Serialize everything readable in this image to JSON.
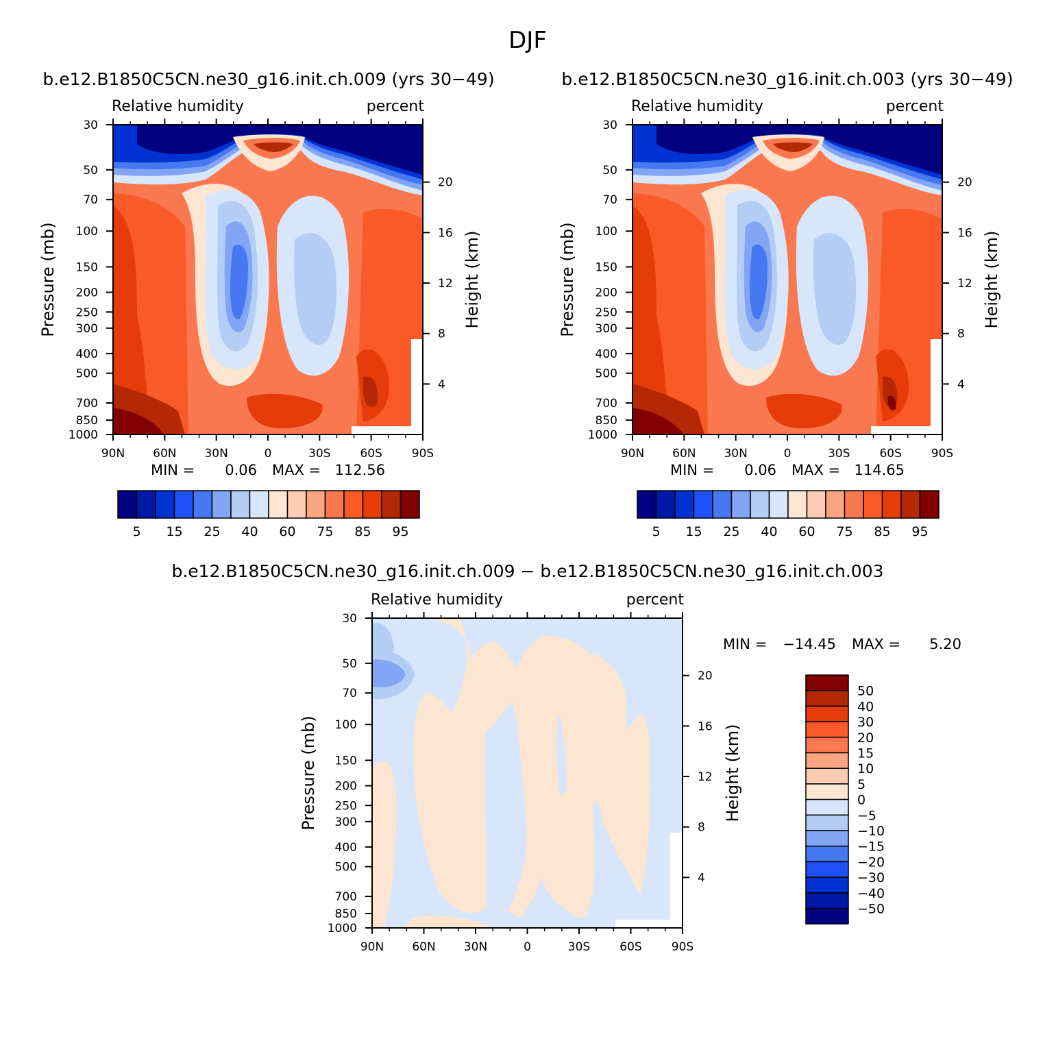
{
  "figure": {
    "title": "DJF",
    "diff_title": "b.e12.B1850C5CN.ne30_g16.init.ch.009 − b.e12.B1850C5CN.ne30_g16.init.ch.003"
  },
  "colors": {
    "rh_levels": [
      "#000080",
      "#0018a8",
      "#0032d2",
      "#1e50f5",
      "#4678f2",
      "#82a5f5",
      "#b4cdf5",
      "#d7e6fa",
      "#fce6d2",
      "#fccdb4",
      "#fca582",
      "#fa7850",
      "#fa5a28",
      "#e63c0a",
      "#b42805",
      "#820000"
    ],
    "diff_levels_top_down": [
      "#820000",
      "#b42805",
      "#e63c0a",
      "#fa5a28",
      "#fa7850",
      "#fca582",
      "#fccdb4",
      "#fce6d2",
      "#d7e6fa",
      "#b4cdf5",
      "#82a5f5",
      "#4678f2",
      "#1e50f5",
      "#0032d2",
      "#0018a8",
      "#000080"
    ]
  },
  "chart_data": [
    {
      "type": "heatmap",
      "title": "b.e12.B1850C5CN.ne30_g16.init.ch.009 (yrs 30−49)",
      "left_string": "Relative humidity",
      "right_string": "percent",
      "ylabel": "Pressure (mb)",
      "ylabel_right": "Height (km)",
      "x_ticks": [
        "90N",
        "60N",
        "30N",
        "0",
        "30S",
        "60S",
        "90S"
      ],
      "y_ticks": [
        "30",
        "50",
        "70",
        "100",
        "150",
        "200",
        "250",
        "300",
        "400",
        "500",
        "700",
        "850",
        "1000"
      ],
      "height_ticks": [
        "20",
        "16",
        "12",
        "8",
        "4"
      ],
      "stats": {
        "min_label": "MIN =",
        "min": "0.06",
        "max_label": "MAX =",
        "max": "112.56"
      },
      "colorbar_labels": [
        "5",
        "15",
        "25",
        "40",
        "60",
        "75",
        "85",
        "95"
      ]
    },
    {
      "type": "heatmap",
      "title": "b.e12.B1850C5CN.ne30_g16.init.ch.003 (yrs 30−49)",
      "left_string": "Relative humidity",
      "right_string": "percent",
      "ylabel": "Pressure (mb)",
      "ylabel_right": "Height (km)",
      "x_ticks": [
        "90N",
        "60N",
        "30N",
        "0",
        "30S",
        "60S",
        "90S"
      ],
      "y_ticks": [
        "30",
        "50",
        "70",
        "100",
        "150",
        "200",
        "250",
        "300",
        "400",
        "500",
        "700",
        "850",
        "1000"
      ],
      "height_ticks": [
        "20",
        "16",
        "12",
        "8",
        "4"
      ],
      "stats": {
        "min_label": "MIN =",
        "min": "0.06",
        "max_label": "MAX =",
        "max": "114.65"
      },
      "colorbar_labels": [
        "5",
        "15",
        "25",
        "40",
        "60",
        "75",
        "85",
        "95"
      ]
    },
    {
      "type": "heatmap",
      "left_string": "Relative humidity",
      "right_string": "percent",
      "ylabel": "Pressure (mb)",
      "ylabel_right": "Height (km)",
      "x_ticks": [
        "90N",
        "60N",
        "30N",
        "0",
        "30S",
        "60S",
        "90S"
      ],
      "y_ticks": [
        "30",
        "50",
        "70",
        "100",
        "150",
        "200",
        "250",
        "300",
        "400",
        "500",
        "700",
        "850",
        "1000"
      ],
      "height_ticks": [
        "20",
        "16",
        "12",
        "8",
        "4"
      ],
      "stats": {
        "min_label": "MIN =",
        "min": "−14.45",
        "max_label": "MAX =",
        "max": "5.20"
      },
      "colorbar_labels": [
        "50",
        "40",
        "30",
        "20",
        "15",
        "10",
        "5",
        "0",
        "−5",
        "−10",
        "−15",
        "−20",
        "−30",
        "−40",
        "−50"
      ]
    }
  ]
}
